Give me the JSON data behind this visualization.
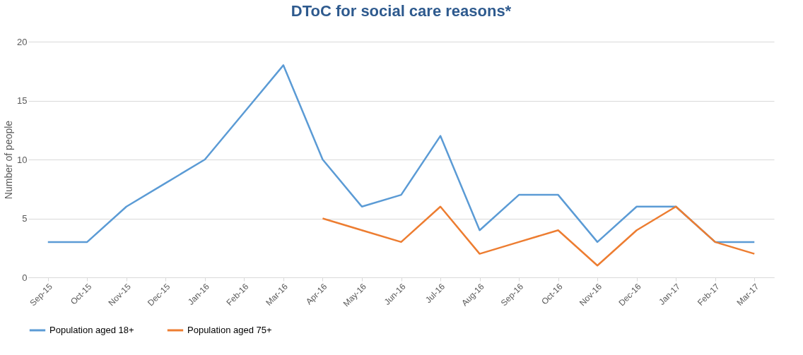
{
  "chart_data": {
    "type": "line",
    "title": "DToC for social care reasons*",
    "ylabel": "Number of people",
    "categories": [
      "Sep-15",
      "Oct-15",
      "Nov-15",
      "Dec-15",
      "Jan-16",
      "Feb-16",
      "Mar-16",
      "Apr-16",
      "May-16",
      "Jun-16",
      "Jul-16",
      "Aug-16",
      "Sep-16",
      "Oct-16",
      "Nov-16",
      "Dec-16",
      "Jan-17",
      "Feb-17",
      "Mar-17"
    ],
    "series": [
      {
        "name": "Population aged 18+",
        "color": "#5b9bd5",
        "values": [
          3,
          3,
          6,
          8,
          10,
          14,
          18,
          10,
          6,
          7,
          12,
          4,
          7,
          7,
          3,
          6,
          6,
          3,
          3
        ]
      },
      {
        "name": "Population aged 75+",
        "color": "#ed7d31",
        "values": [
          null,
          null,
          null,
          null,
          null,
          null,
          null,
          5,
          4,
          3,
          6,
          2,
          3,
          4,
          1,
          4,
          6,
          3,
          2
        ]
      }
    ],
    "ylim": [
      0,
      20
    ],
    "yticks": [
      0,
      5,
      10,
      15,
      20
    ],
    "grid": "y",
    "legend": "bottom",
    "marker": "none",
    "line_style": "solid"
  }
}
